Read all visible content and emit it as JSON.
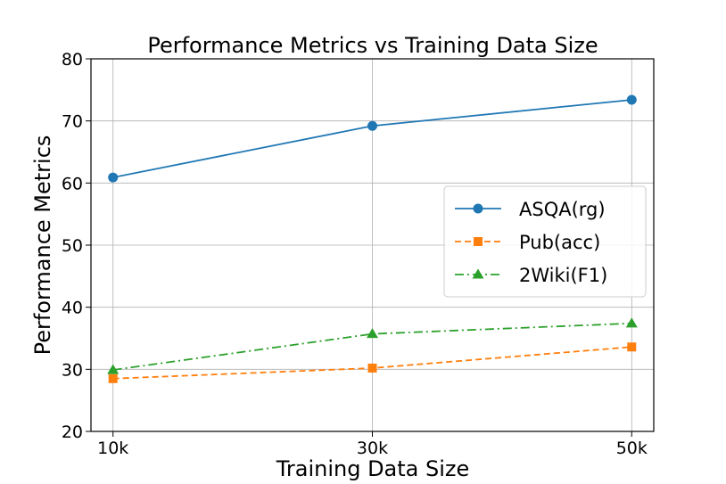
{
  "chart_data": {
    "type": "line",
    "title": "Performance Metrics vs Training Data Size",
    "xlabel": "Training Data Size",
    "ylabel": "Performance Metrics",
    "categories": [
      "10k",
      "30k",
      "50k"
    ],
    "x": [
      10,
      30,
      50
    ],
    "xlim": [
      8.3,
      51.7
    ],
    "ylim": [
      20,
      80
    ],
    "yticks": [
      20,
      30,
      40,
      50,
      60,
      70,
      80
    ],
    "grid": true,
    "legend_position": "center-right",
    "series": [
      {
        "name": "ASQA(rg)",
        "values": [
          60.9,
          69.2,
          73.4
        ],
        "color": "#1f77b4",
        "marker": "circle",
        "linestyle": "solid"
      },
      {
        "name": "Pub(acc)",
        "values": [
          28.5,
          30.2,
          33.6
        ],
        "color": "#ff7f0e",
        "marker": "square",
        "linestyle": "dashed"
      },
      {
        "name": "2Wiki(F1)",
        "values": [
          29.9,
          35.7,
          37.4
        ],
        "color": "#2ca02c",
        "marker": "triangle",
        "linestyle": "dashdot"
      }
    ]
  }
}
